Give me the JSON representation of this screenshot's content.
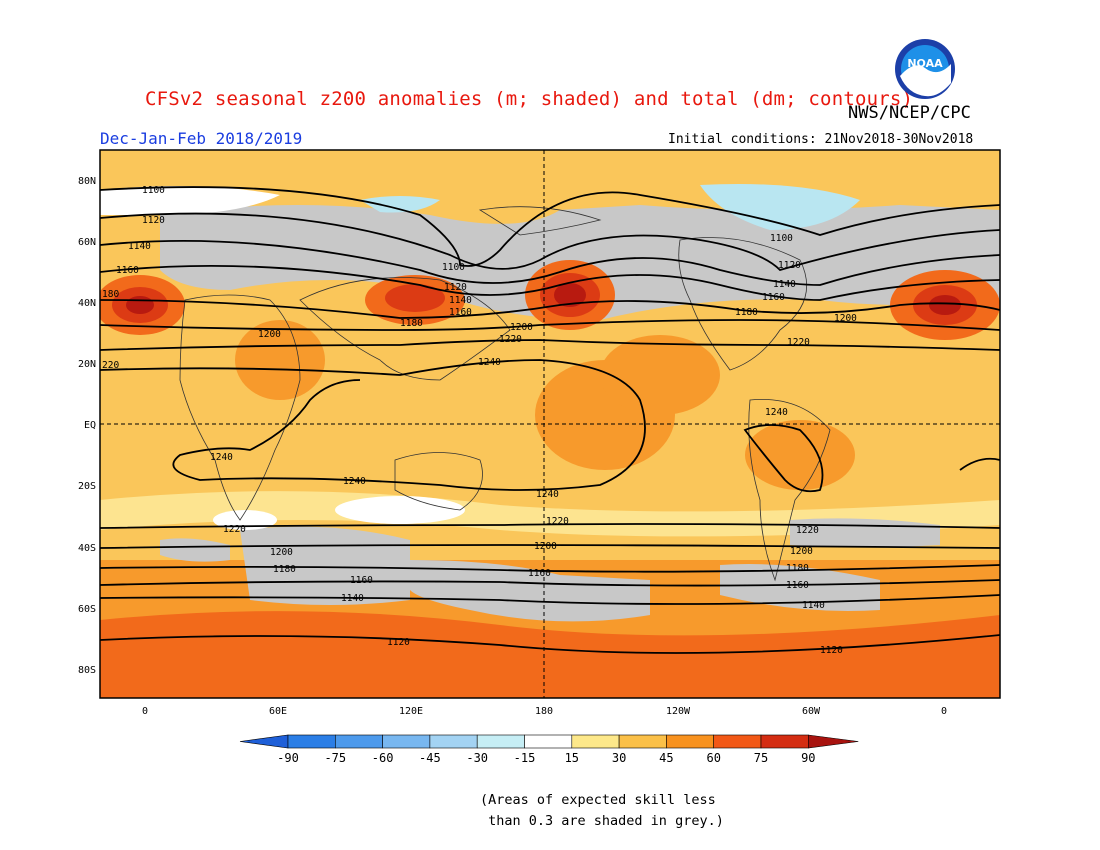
{
  "title": "CFSv2 seasonal z200 anomalies (m; shaded) and total (dm; contours)",
  "agency": "NWS/NCEP/CPC",
  "season": "Dec-Jan-Feb 2018/2019",
  "initial_conditions": "Initial conditions: 21Nov2018-30Nov2018",
  "logo_text": "NOAA",
  "latitude_labels": [
    "80N",
    "60N",
    "40N",
    "20N",
    "EQ",
    "20S",
    "40S",
    "60S",
    "80S"
  ],
  "longitude_labels": [
    "0",
    "60E",
    "120E",
    "180",
    "120W",
    "60W",
    "0"
  ],
  "colorbar": {
    "labels": [
      "-90",
      "-75",
      "-60",
      "-45",
      "-30",
      "-15",
      "15",
      "30",
      "45",
      "60",
      "75",
      "90"
    ],
    "colors": [
      "#1e5fd8",
      "#2b7ee6",
      "#4d9aec",
      "#78b7f0",
      "#a3d3f3",
      "#c6eef5",
      "#ffffff",
      "#fde88a",
      "#fbc048",
      "#f8921f",
      "#f25816",
      "#d42d12",
      "#a8130f"
    ]
  },
  "map_colors": {
    "grey_low_skill": "#c8c8c8",
    "ocean_bg": "#fac65a",
    "light_yellow": "#fde490",
    "orange": "#f79a2c",
    "dark_orange": "#f26a1b",
    "red": "#dc3b14",
    "dark_red": "#b81a10",
    "light_blue": "#b9e6f1",
    "white": "#ffffff"
  },
  "contour_labels": {
    "c1100": "1100",
    "c1120": "1120",
    "c1140": "1140",
    "c1160": "1160",
    "c1180": "1180",
    "c1200": "1200",
    "c1220": "1220",
    "c1240": "1240",
    "left220": "220",
    "left180": "180"
  },
  "note": "(Areas of expected skill less\n than 0.3 are shaded in grey.)"
}
